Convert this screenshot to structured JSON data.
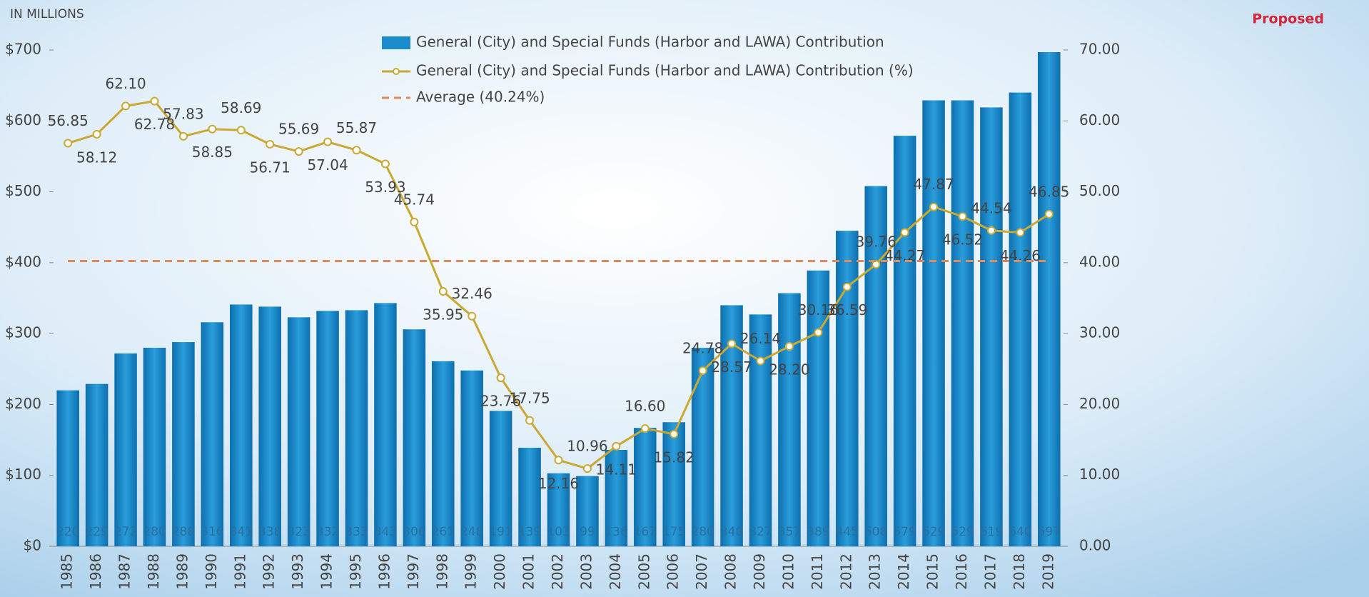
{
  "chart_data": {
    "type": "bar",
    "ylabel": "IN MILLIONS",
    "annotation": "Proposed",
    "categories": [
      "1985",
      "1986",
      "1987",
      "1988",
      "1989",
      "1990",
      "1991",
      "1992",
      "1993",
      "1994",
      "1995",
      "1996",
      "1997",
      "1998",
      "1999",
      "2000",
      "2001",
      "2002",
      "2003",
      "2004",
      "2005",
      "2006",
      "2007",
      "2008",
      "2009",
      "2010",
      "2011",
      "2012",
      "2013",
      "2014",
      "2015",
      "2016",
      "2017",
      "2018",
      "2019"
    ],
    "series": [
      {
        "name": "General (City) and Special Funds (Harbor and LAWA) Contribution",
        "color": "#1b8ccc",
        "values": [
          220,
          229,
          272,
          280,
          288,
          316,
          341,
          338,
          323,
          332,
          333,
          343,
          306,
          261,
          248,
          191,
          139,
          103,
          99,
          136,
          167,
          175,
          280,
          340,
          327,
          357,
          389,
          445,
          508,
          579,
          629,
          629,
          619,
          640,
          697
        ]
      },
      {
        "name": "General (City) and Special Funds (Harbor and LAWA) Contribution (%)",
        "color": "#c9a833",
        "axis": "y2",
        "values": [
          56.85,
          58.12,
          62.1,
          62.78,
          57.83,
          58.85,
          58.69,
          56.71,
          55.69,
          57.04,
          55.87,
          53.93,
          45.74,
          35.95,
          32.46,
          23.76,
          17.75,
          12.16,
          10.96,
          14.11,
          16.6,
          15.82,
          24.78,
          28.57,
          26.14,
          28.2,
          30.16,
          36.59,
          39.76,
          44.27,
          47.87,
          46.52,
          44.54,
          44.26,
          46.85
        ],
        "value_labels": [
          "56.85",
          "58.12",
          "62.10",
          "62.78",
          "57.83",
          "58.85",
          "58.69",
          "56.71",
          "55.69",
          "57.04",
          "55.87",
          "53.93",
          "45.74",
          "35.95",
          "32.46",
          "23.76",
          "17.75",
          "12.16",
          "10.96",
          "14.11",
          "16.60",
          "15.82",
          "24.78",
          "28.57",
          "26.14",
          "28.20",
          "30.16",
          "36.59",
          "39.76",
          "44.27",
          "47.87",
          "46.52",
          "44.54",
          "44.26",
          "46.85"
        ]
      }
    ],
    "average": {
      "name": "Average (40.24%)",
      "value": 40.24,
      "color": "#e0895a",
      "axis": "y2"
    },
    "ylim": [
      0,
      700
    ],
    "yticks": [
      {
        "value": 0,
        "label": "$0"
      },
      {
        "value": 100,
        "label": "$100"
      },
      {
        "value": 200,
        "label": "$200"
      },
      {
        "value": 300,
        "label": "$300"
      },
      {
        "value": 400,
        "label": "$400"
      },
      {
        "value": 500,
        "label": "$500"
      },
      {
        "value": 600,
        "label": "$600"
      },
      {
        "value": 700,
        "label": "$700"
      }
    ],
    "y2lim": [
      0,
      70
    ],
    "y2ticks": [
      {
        "value": 0,
        "label": "0.00"
      },
      {
        "value": 10,
        "label": "10.00"
      },
      {
        "value": 20,
        "label": "20.00"
      },
      {
        "value": 30,
        "label": "30.00"
      },
      {
        "value": 40,
        "label": "40.00"
      },
      {
        "value": 50,
        "label": "50.00"
      },
      {
        "value": 60,
        "label": "60.00"
      },
      {
        "value": 70,
        "label": "70.00"
      }
    ]
  }
}
